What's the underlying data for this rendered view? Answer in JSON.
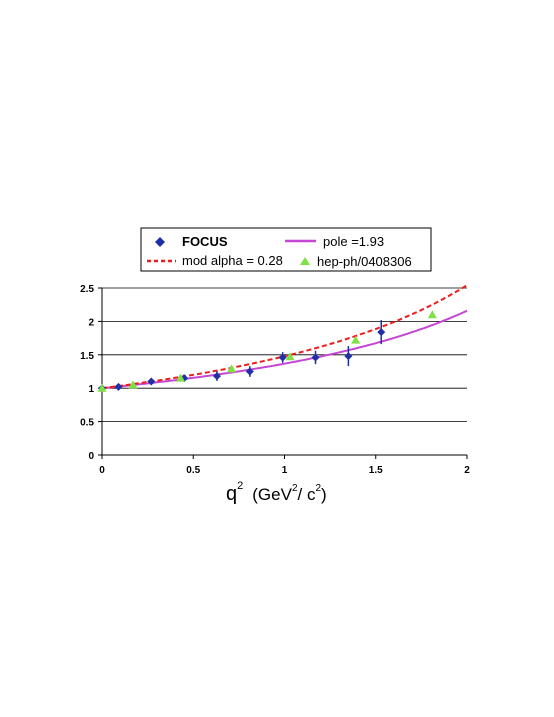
{
  "chart_data": {
    "type": "scatter",
    "title": "",
    "xlabel": "q",
    "xlabel_sup": "2",
    "xlabel_unit_open": "(GeV",
    "xlabel_unit_sup1": "2",
    "xlabel_unit_mid": "/ c",
    "xlabel_unit_sup2": "2",
    "xlabel_unit_close": ")",
    "ylabel": "",
    "xlim": [
      0,
      2
    ],
    "ylim": [
      0,
      2.5
    ],
    "x_ticks": [
      "0",
      "0.5",
      "1",
      "1.5",
      "2"
    ],
    "y_ticks": [
      "0",
      "0.5",
      "1",
      "1.5",
      "2",
      "2.5"
    ],
    "grid": "horizontal",
    "legend_position": "top",
    "series": [
      {
        "name": "FOCUS",
        "kind": "points-with-errorbars",
        "marker": "diamond",
        "color": "#1f2fa8",
        "points": [
          {
            "x": 0.0,
            "y": 1.0,
            "err": 0.02
          },
          {
            "x": 0.09,
            "y": 1.02,
            "err": 0.03
          },
          {
            "x": 0.27,
            "y": 1.1,
            "err": 0.04
          },
          {
            "x": 0.45,
            "y": 1.15,
            "err": 0.05
          },
          {
            "x": 0.63,
            "y": 1.18,
            "err": 0.07
          },
          {
            "x": 0.81,
            "y": 1.25,
            "err": 0.08
          },
          {
            "x": 0.99,
            "y": 1.46,
            "err": 0.08
          },
          {
            "x": 1.17,
            "y": 1.46,
            "err": 0.1
          },
          {
            "x": 1.35,
            "y": 1.48,
            "err": 0.15
          },
          {
            "x": 1.53,
            "y": 1.84,
            "err": 0.18
          }
        ]
      },
      {
        "name": "pole =1.93",
        "kind": "line",
        "color": "#c646d6",
        "pole_mass": 1.93
      },
      {
        "name": "mod alpha = 0.28",
        "kind": "dashed-line",
        "color": "#ee1c1c",
        "pole_mass": 1.93,
        "alpha": 0.28
      },
      {
        "name": "hep-ph/0408306",
        "kind": "points",
        "marker": "triangle",
        "color": "#7fe044",
        "points": [
          {
            "x": 0.0,
            "y": 1.0
          },
          {
            "x": 0.17,
            "y": 1.05
          },
          {
            "x": 0.43,
            "y": 1.15
          },
          {
            "x": 0.71,
            "y": 1.29
          },
          {
            "x": 1.03,
            "y": 1.47
          },
          {
            "x": 1.39,
            "y": 1.72
          },
          {
            "x": 1.81,
            "y": 2.1
          }
        ]
      }
    ]
  }
}
